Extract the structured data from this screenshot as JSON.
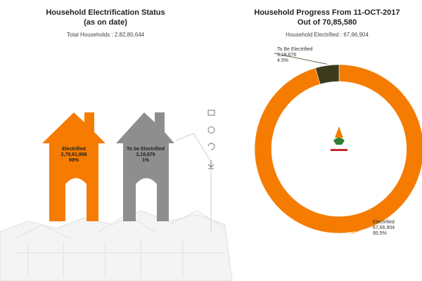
{
  "left": {
    "title": "Household Electrification Status",
    "subtitle": "(as on date)",
    "total": "Total  Households : 2,82,80,644",
    "electrified": {
      "label": "Electrified",
      "count": "2,79,61,968",
      "percent": "99%"
    },
    "to_be_electrified": {
      "label": "To be Electrified",
      "count": "3,18,676",
      "percent": "1%"
    }
  },
  "chart_data": {
    "type": "pie",
    "donut": true,
    "title": "Household Progress From 11-OCT-2017",
    "subtitle": "Out of 70,85,580",
    "note": "Household Electrified : 67,66,904",
    "categories": [
      "Electrified",
      "To Be Electrified"
    ],
    "values": [
      6766904,
      318676
    ],
    "value_labels": [
      "67,66,904",
      "3,18,676"
    ],
    "percent_labels": [
      "95.5%",
      "4.5%"
    ],
    "colors": [
      "#f57c00",
      "#3b3a1c"
    ]
  }
}
